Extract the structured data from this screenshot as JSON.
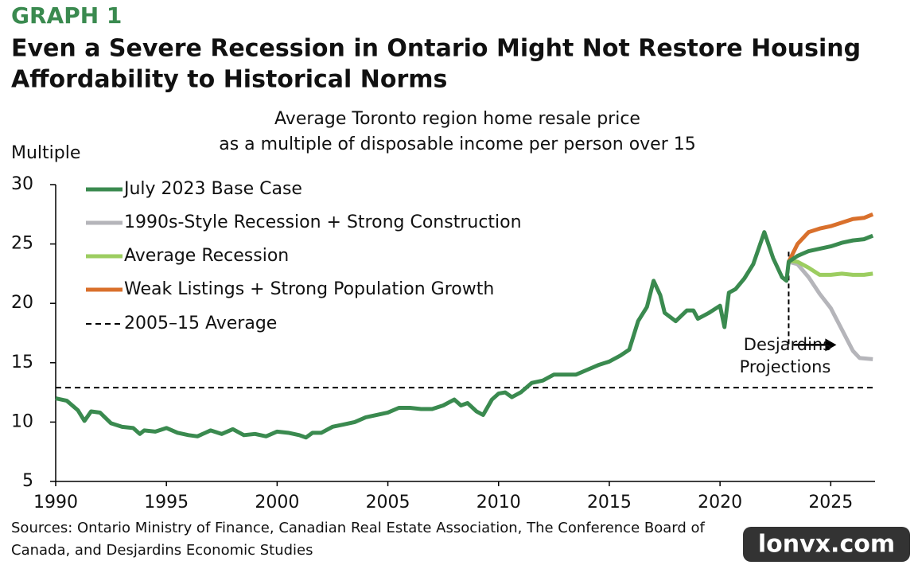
{
  "chart_data": {
    "type": "line",
    "label": "GRAPH 1",
    "title": [
      "Even a Severe Recession in Ontario Might Not Restore Housing",
      "Affordability to Historical Norms"
    ],
    "subtitle": [
      "Average Toronto region home resale price",
      "as a multiple of disposable income per person over 15"
    ],
    "ylabel": "Multiple",
    "xlim": [
      1990,
      2027
    ],
    "xticks": [
      1990,
      1995,
      2000,
      2005,
      2010,
      2015,
      2020,
      2025
    ],
    "ylim": [
      5,
      30
    ],
    "yticks": [
      5,
      10,
      15,
      20,
      25,
      30
    ],
    "grid": false,
    "legend": "upper left",
    "series": [
      {
        "name": "July 2023 Base Case",
        "color": "#3a8a4f",
        "x": [
          1990,
          1990.5,
          1991,
          1991.3,
          1991.6,
          1992,
          1992.5,
          1993,
          1993.5,
          1993.8,
          1994,
          1994.5,
          1995,
          1995.5,
          1996,
          1996.4,
          1997,
          1997.5,
          1998,
          1998.5,
          1999,
          1999.5,
          2000,
          2000.5,
          2001,
          2001.3,
          2001.6,
          2002,
          2002.5,
          2003,
          2003.5,
          2004,
          2004.5,
          2005,
          2005.5,
          2006,
          2006.5,
          2007,
          2007.5,
          2008,
          2008.3,
          2008.6,
          2009,
          2009.3,
          2009.7,
          2010,
          2010.3,
          2010.6,
          2011,
          2011.5,
          2012,
          2012.5,
          2013,
          2013.5,
          2014,
          2014.5,
          2015,
          2015.5,
          2015.9,
          2016.3,
          2016.7,
          2017.0,
          2017.3,
          2017.5,
          2018,
          2018.5,
          2018.8,
          2019.0,
          2019.5,
          2020,
          2020.2,
          2020.4,
          2020.7,
          2021.1,
          2021.5,
          2022.0,
          2022.4,
          2022.8,
          2023.0,
          2023.1,
          2023.5,
          2024,
          2024.5,
          2025,
          2025.5,
          2026,
          2026.5,
          2026.9
        ],
        "values": [
          12.0,
          11.8,
          11.0,
          10.1,
          10.9,
          10.8,
          9.9,
          9.6,
          9.5,
          9.0,
          9.3,
          9.2,
          9.5,
          9.1,
          8.9,
          8.8,
          9.3,
          9.0,
          9.4,
          8.9,
          9.0,
          8.8,
          9.2,
          9.1,
          8.9,
          8.7,
          9.1,
          9.1,
          9.6,
          9.8,
          10.0,
          10.4,
          10.6,
          10.8,
          11.2,
          11.2,
          11.1,
          11.1,
          11.4,
          11.9,
          11.4,
          11.6,
          10.9,
          10.6,
          11.9,
          12.4,
          12.5,
          12.1,
          12.5,
          13.3,
          13.5,
          14.0,
          14.0,
          14.0,
          14.4,
          14.8,
          15.1,
          15.6,
          16.1,
          18.5,
          19.7,
          21.9,
          20.7,
          19.2,
          18.5,
          19.4,
          19.4,
          18.7,
          19.2,
          19.8,
          18.0,
          20.9,
          21.2,
          22.1,
          23.3,
          26.0,
          23.8,
          22.2,
          21.9,
          23.5,
          24.0,
          24.4,
          24.6,
          24.8,
          25.1,
          25.3,
          25.4,
          25.7
        ]
      },
      {
        "name": "1990s-Style Recession + Strong Construction",
        "color": "#b5b5ba",
        "x": [
          2023.1,
          2023.5,
          2024,
          2024.5,
          2025,
          2025.5,
          2026,
          2026.3,
          2026.9
        ],
        "values": [
          23.5,
          23.3,
          22.2,
          20.8,
          19.6,
          17.8,
          16.0,
          15.4,
          15.3
        ]
      },
      {
        "name": "Average Recession",
        "color": "#9ccd60",
        "x": [
          2023.1,
          2023.5,
          2024,
          2024.5,
          2025,
          2025.5,
          2026,
          2026.5,
          2026.9
        ],
        "values": [
          23.6,
          23.5,
          23.0,
          22.4,
          22.4,
          22.5,
          22.4,
          22.4,
          22.5
        ]
      },
      {
        "name": "Weak Listings + Strong Population Growth",
        "color": "#d9702c",
        "x": [
          2023.1,
          2023.5,
          2024,
          2024.5,
          2025,
          2025.5,
          2026,
          2026.5,
          2026.9
        ],
        "values": [
          23.5,
          25.0,
          26.0,
          26.3,
          26.5,
          26.8,
          27.1,
          27.2,
          27.5
        ]
      }
    ],
    "hline": {
      "name": "2005–15 Average",
      "value": 12.9,
      "color": "#000000"
    },
    "vline": {
      "x": 2023.1,
      "y": [
        23.5,
        16.3
      ]
    },
    "annotation": [
      "Desjardins",
      "Projections"
    ],
    "source": [
      "Sources: Ontario Ministry of Finance, Canadian Real Estate Association, The Conference Board of",
      "Canada, and Desjardins Economic Studies"
    ],
    "watermark": "lonvx.com"
  }
}
